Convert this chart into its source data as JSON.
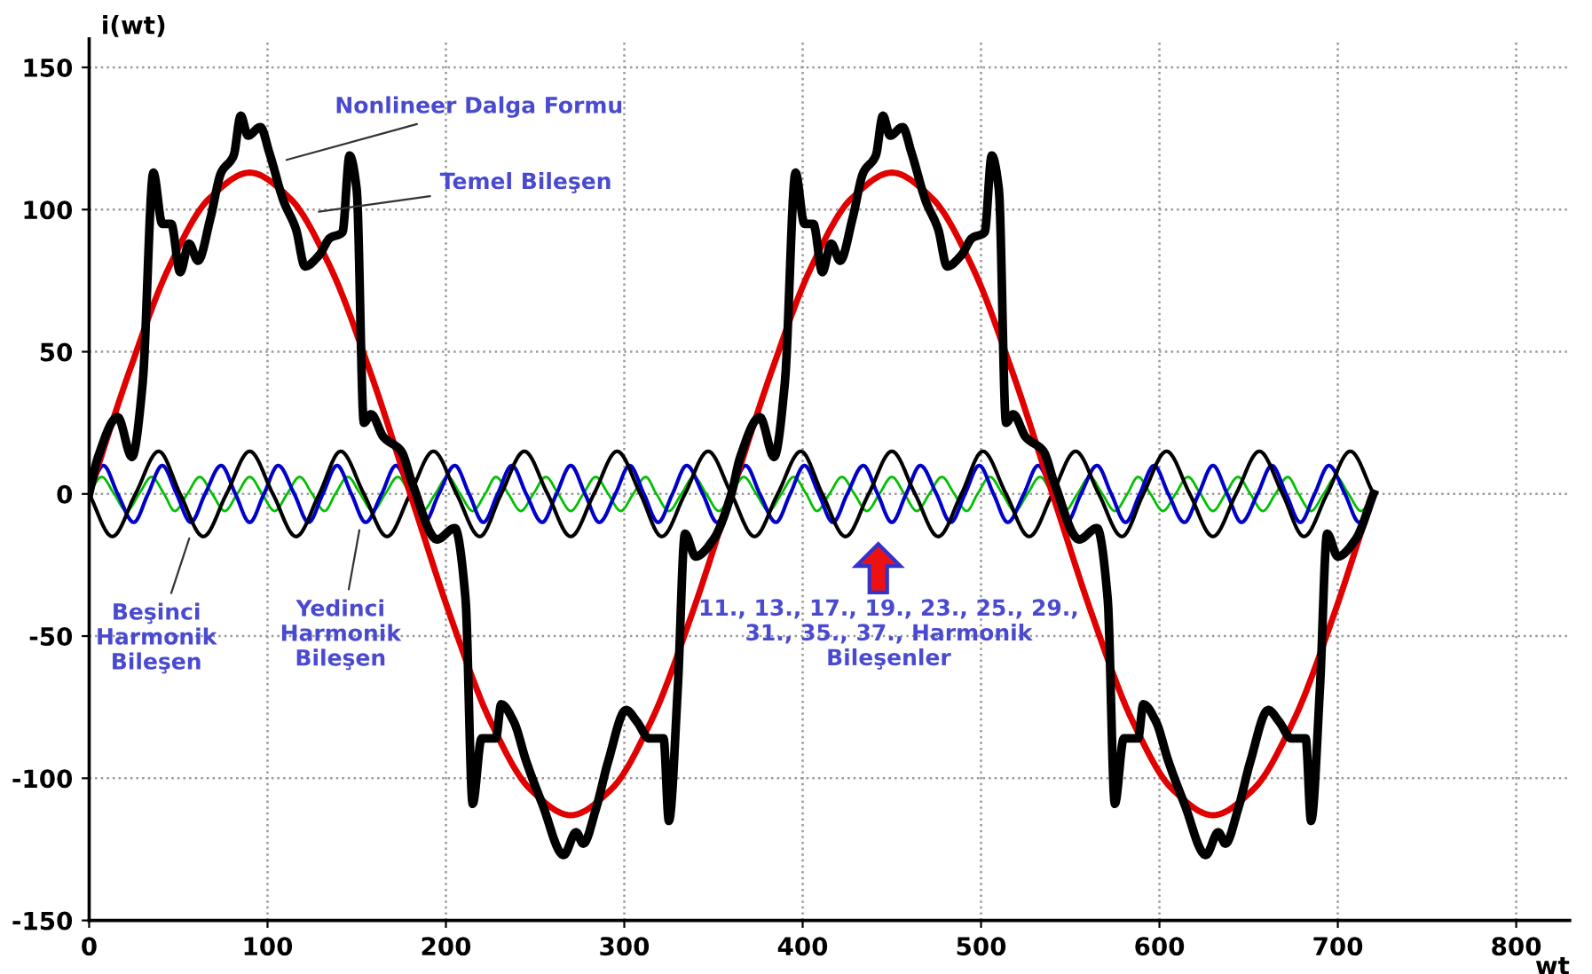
{
  "chart_data": {
    "type": "line",
    "xlabel": "wt",
    "ylabel": "i(wt)",
    "xlim": [
      0,
      830
    ],
    "ylim": [
      -150,
      160
    ],
    "xticks": [
      0,
      100,
      200,
      300,
      400,
      500,
      600,
      700,
      800
    ],
    "yticks": [
      -150,
      -100,
      -50,
      0,
      50,
      100,
      150
    ],
    "grid": true,
    "legend": false,
    "line_style": "solid",
    "series": [
      {
        "color": "#00c000",
        "x": [
          0,
          7,
          14,
          21,
          28,
          35,
          42,
          48,
          55,
          62,
          69,
          76,
          83,
          90,
          97,
          104,
          111,
          118,
          125,
          132,
          138,
          145,
          152,
          159,
          166,
          173,
          180,
          187,
          194,
          201,
          208,
          215,
          222,
          228,
          235,
          242,
          249,
          256,
          263,
          270,
          277,
          284,
          291,
          298,
          305,
          312,
          318,
          325,
          332,
          339,
          346,
          353,
          360,
          367,
          374,
          381,
          388,
          395,
          402,
          408,
          415,
          422,
          429,
          436,
          443,
          450,
          457,
          464,
          471,
          478,
          485,
          492,
          498,
          505,
          512,
          519,
          526,
          533,
          540,
          547,
          554,
          561,
          568,
          575,
          582,
          588,
          595,
          602,
          609,
          616,
          623,
          630,
          637,
          644,
          651,
          658,
          665,
          672,
          678,
          685,
          692,
          699,
          706,
          713,
          720
        ],
        "values": [
          0,
          6,
          0,
          -6,
          0,
          6,
          0,
          -6,
          0,
          6,
          0,
          -6,
          0,
          6,
          0,
          -6,
          0,
          6,
          0,
          -6,
          0,
          6,
          0,
          -6,
          0,
          6,
          0,
          -6,
          0,
          6,
          0,
          -6,
          0,
          6,
          0,
          -6,
          0,
          6,
          0,
          -6,
          0,
          6,
          0,
          -6,
          0,
          6,
          0,
          -6,
          0,
          6,
          0,
          -6,
          0,
          6,
          0,
          -6,
          0,
          6,
          0,
          -6,
          0,
          6,
          0,
          -6,
          0,
          6,
          0,
          -6,
          0,
          6,
          0,
          -6,
          0,
          6,
          0,
          -6,
          0,
          6,
          0,
          -6,
          0,
          6,
          0,
          -6,
          0,
          6,
          0,
          -6,
          0,
          6,
          0,
          -6,
          0,
          6,
          0,
          -6,
          0,
          6,
          0,
          -6,
          0,
          6,
          0,
          -6,
          0
        ]
      },
      {
        "color": "#0000c8",
        "x": [
          0,
          8,
          16,
          25,
          33,
          41,
          49,
          57,
          65,
          74,
          82,
          90,
          98,
          106,
          115,
          123,
          131,
          139,
          147,
          155,
          164,
          172,
          180,
          188,
          196,
          205,
          213,
          221,
          229,
          237,
          245,
          254,
          262,
          270,
          278,
          286,
          295,
          303,
          311,
          319,
          327,
          335,
          344,
          352,
          360,
          368,
          376,
          385,
          393,
          401,
          409,
          417,
          425,
          434,
          442,
          450,
          458,
          466,
          475,
          483,
          491,
          499,
          507,
          515,
          524,
          532,
          540,
          548,
          556,
          565,
          573,
          581,
          589,
          597,
          605,
          614,
          622,
          630,
          638,
          646,
          655,
          663,
          671,
          679,
          687,
          695,
          704,
          712,
          720
        ],
        "values": [
          0,
          10,
          0,
          -10,
          0,
          10,
          0,
          -10,
          0,
          10,
          0,
          -10,
          0,
          10,
          0,
          -10,
          0,
          10,
          0,
          -10,
          0,
          10,
          0,
          -10,
          0,
          10,
          0,
          -10,
          0,
          10,
          0,
          -10,
          0,
          10,
          0,
          -10,
          0,
          10,
          0,
          -10,
          0,
          10,
          0,
          -10,
          0,
          10,
          0,
          -10,
          0,
          10,
          0,
          -10,
          0,
          10,
          0,
          -10,
          0,
          10,
          0,
          -10,
          0,
          10,
          0,
          -10,
          0,
          10,
          0,
          -10,
          0,
          10,
          0,
          -10,
          0,
          10,
          0,
          -10,
          0,
          10,
          0,
          -10,
          0,
          10,
          0,
          -10,
          0,
          10,
          0,
          -10,
          0
        ]
      },
      {
        "color": "#000000",
        "x": [
          0,
          13,
          26,
          39,
          51,
          64,
          77,
          90,
          103,
          116,
          129,
          141,
          154,
          167,
          180,
          193,
          206,
          219,
          231,
          244,
          257,
          270,
          283,
          296,
          309,
          321,
          334,
          347,
          360,
          373,
          386,
          399,
          411,
          424,
          437,
          450,
          463,
          476,
          489,
          501,
          514,
          527,
          540,
          553,
          566,
          579,
          591,
          604,
          617,
          630,
          643,
          656,
          669,
          681,
          694,
          707,
          720
        ],
        "values": [
          0,
          -15,
          0,
          15,
          0,
          -15,
          0,
          15,
          0,
          -15,
          0,
          15,
          0,
          -15,
          0,
          15,
          0,
          -15,
          0,
          15,
          0,
          -15,
          0,
          15,
          0,
          -15,
          0,
          15,
          0,
          -15,
          0,
          15,
          0,
          -15,
          0,
          15,
          0,
          -15,
          0,
          15,
          0,
          -15,
          0,
          15,
          0,
          -15,
          0,
          15,
          0,
          -15,
          0,
          15,
          0,
          -15,
          0,
          15,
          0
        ]
      },
      {
        "color": "#e00000",
        "x": [
          0,
          22.5,
          45,
          67.5,
          90,
          112.5,
          135,
          157.5,
          180,
          202.5,
          225,
          247.5,
          270,
          292.5,
          315,
          337.5,
          360,
          382.5,
          405,
          427.5,
          450,
          472.5,
          495,
          517.5,
          540,
          562.5,
          585,
          607.5,
          630,
          652.5,
          675,
          697.5,
          720
        ],
        "values": [
          0,
          43,
          80,
          104,
          113,
          104,
          80,
          43,
          0,
          -43,
          -80,
          -104,
          -113,
          -104,
          -80,
          -43,
          0,
          43,
          80,
          104,
          113,
          104,
          80,
          43,
          0,
          -43,
          -80,
          -104,
          -113,
          -104,
          -80,
          -43,
          0
        ]
      },
      {
        "color": "#000000",
        "x": [
          0,
          5,
          16,
          24,
          30,
          36,
          41,
          46,
          51,
          56,
          61,
          68,
          74,
          81,
          85,
          89,
          96,
          101,
          109,
          116,
          121,
          129,
          135,
          142,
          146,
          150,
          154,
          158,
          165,
          175,
          181,
          195,
          205,
          211,
          215,
          220,
          228,
          231,
          238,
          245,
          254,
          266,
          273,
          277,
          284,
          291,
          301,
          307,
          314,
          322,
          325,
          330,
          334,
          340,
          350,
          360,
          365,
          376,
          384,
          390,
          396,
          401,
          406,
          411,
          416,
          421,
          428,
          434,
          441,
          445,
          449,
          456,
          461,
          469,
          476,
          481,
          489,
          495,
          502,
          506,
          510,
          514,
          518,
          525,
          535,
          541,
          555,
          565,
          571,
          575,
          580,
          588,
          591,
          598,
          605,
          614,
          626,
          633,
          637,
          644,
          651,
          661,
          667,
          674,
          682,
          685,
          690,
          694,
          700,
          710,
          720
        ],
        "values": [
          0,
          13,
          27,
          13,
          39,
          113,
          95,
          95,
          78,
          88,
          82,
          97,
          113,
          119,
          133,
          126,
          129,
          120,
          103,
          93,
          80,
          84,
          90,
          92,
          119,
          107,
          25,
          28,
          20,
          15,
          4,
          -16,
          -12,
          -37,
          -109,
          -86,
          -86,
          -74,
          -80,
          -94,
          -109,
          -127,
          -119,
          -123,
          -111,
          -94,
          -76,
          -80,
          -86,
          -86,
          -115,
          -68,
          -14,
          -22,
          -16,
          0,
          13,
          27,
          13,
          39,
          113,
          95,
          95,
          78,
          88,
          82,
          97,
          113,
          119,
          133,
          126,
          129,
          120,
          103,
          93,
          80,
          84,
          90,
          92,
          119,
          107,
          25,
          28,
          20,
          15,
          4,
          -16,
          -12,
          -37,
          -109,
          -86,
          -86,
          -74,
          -80,
          -94,
          -109,
          -127,
          -119,
          -123,
          -111,
          -94,
          -76,
          -80,
          -86,
          -86,
          -115,
          -68,
          -14,
          -22,
          -16,
          0
        ]
      }
    ],
    "annotations": [
      {
        "text": "Nonlineer Dalga Formu",
        "x": 108,
        "y": 117
      },
      {
        "text": "Temel Bileşen",
        "x": 126,
        "y": 99
      },
      {
        "text": "Beşinci\nHarmonik\nBileşen",
        "x": 57,
        "y": -14
      },
      {
        "text": "Yedinci\nHarmonik\nBileşen",
        "x": 152,
        "y": -11
      },
      "11., 13., 17., 19., 23., 25., 29.,\n31., 35., 37., Harmonik\nBileşenler"
    ]
  }
}
